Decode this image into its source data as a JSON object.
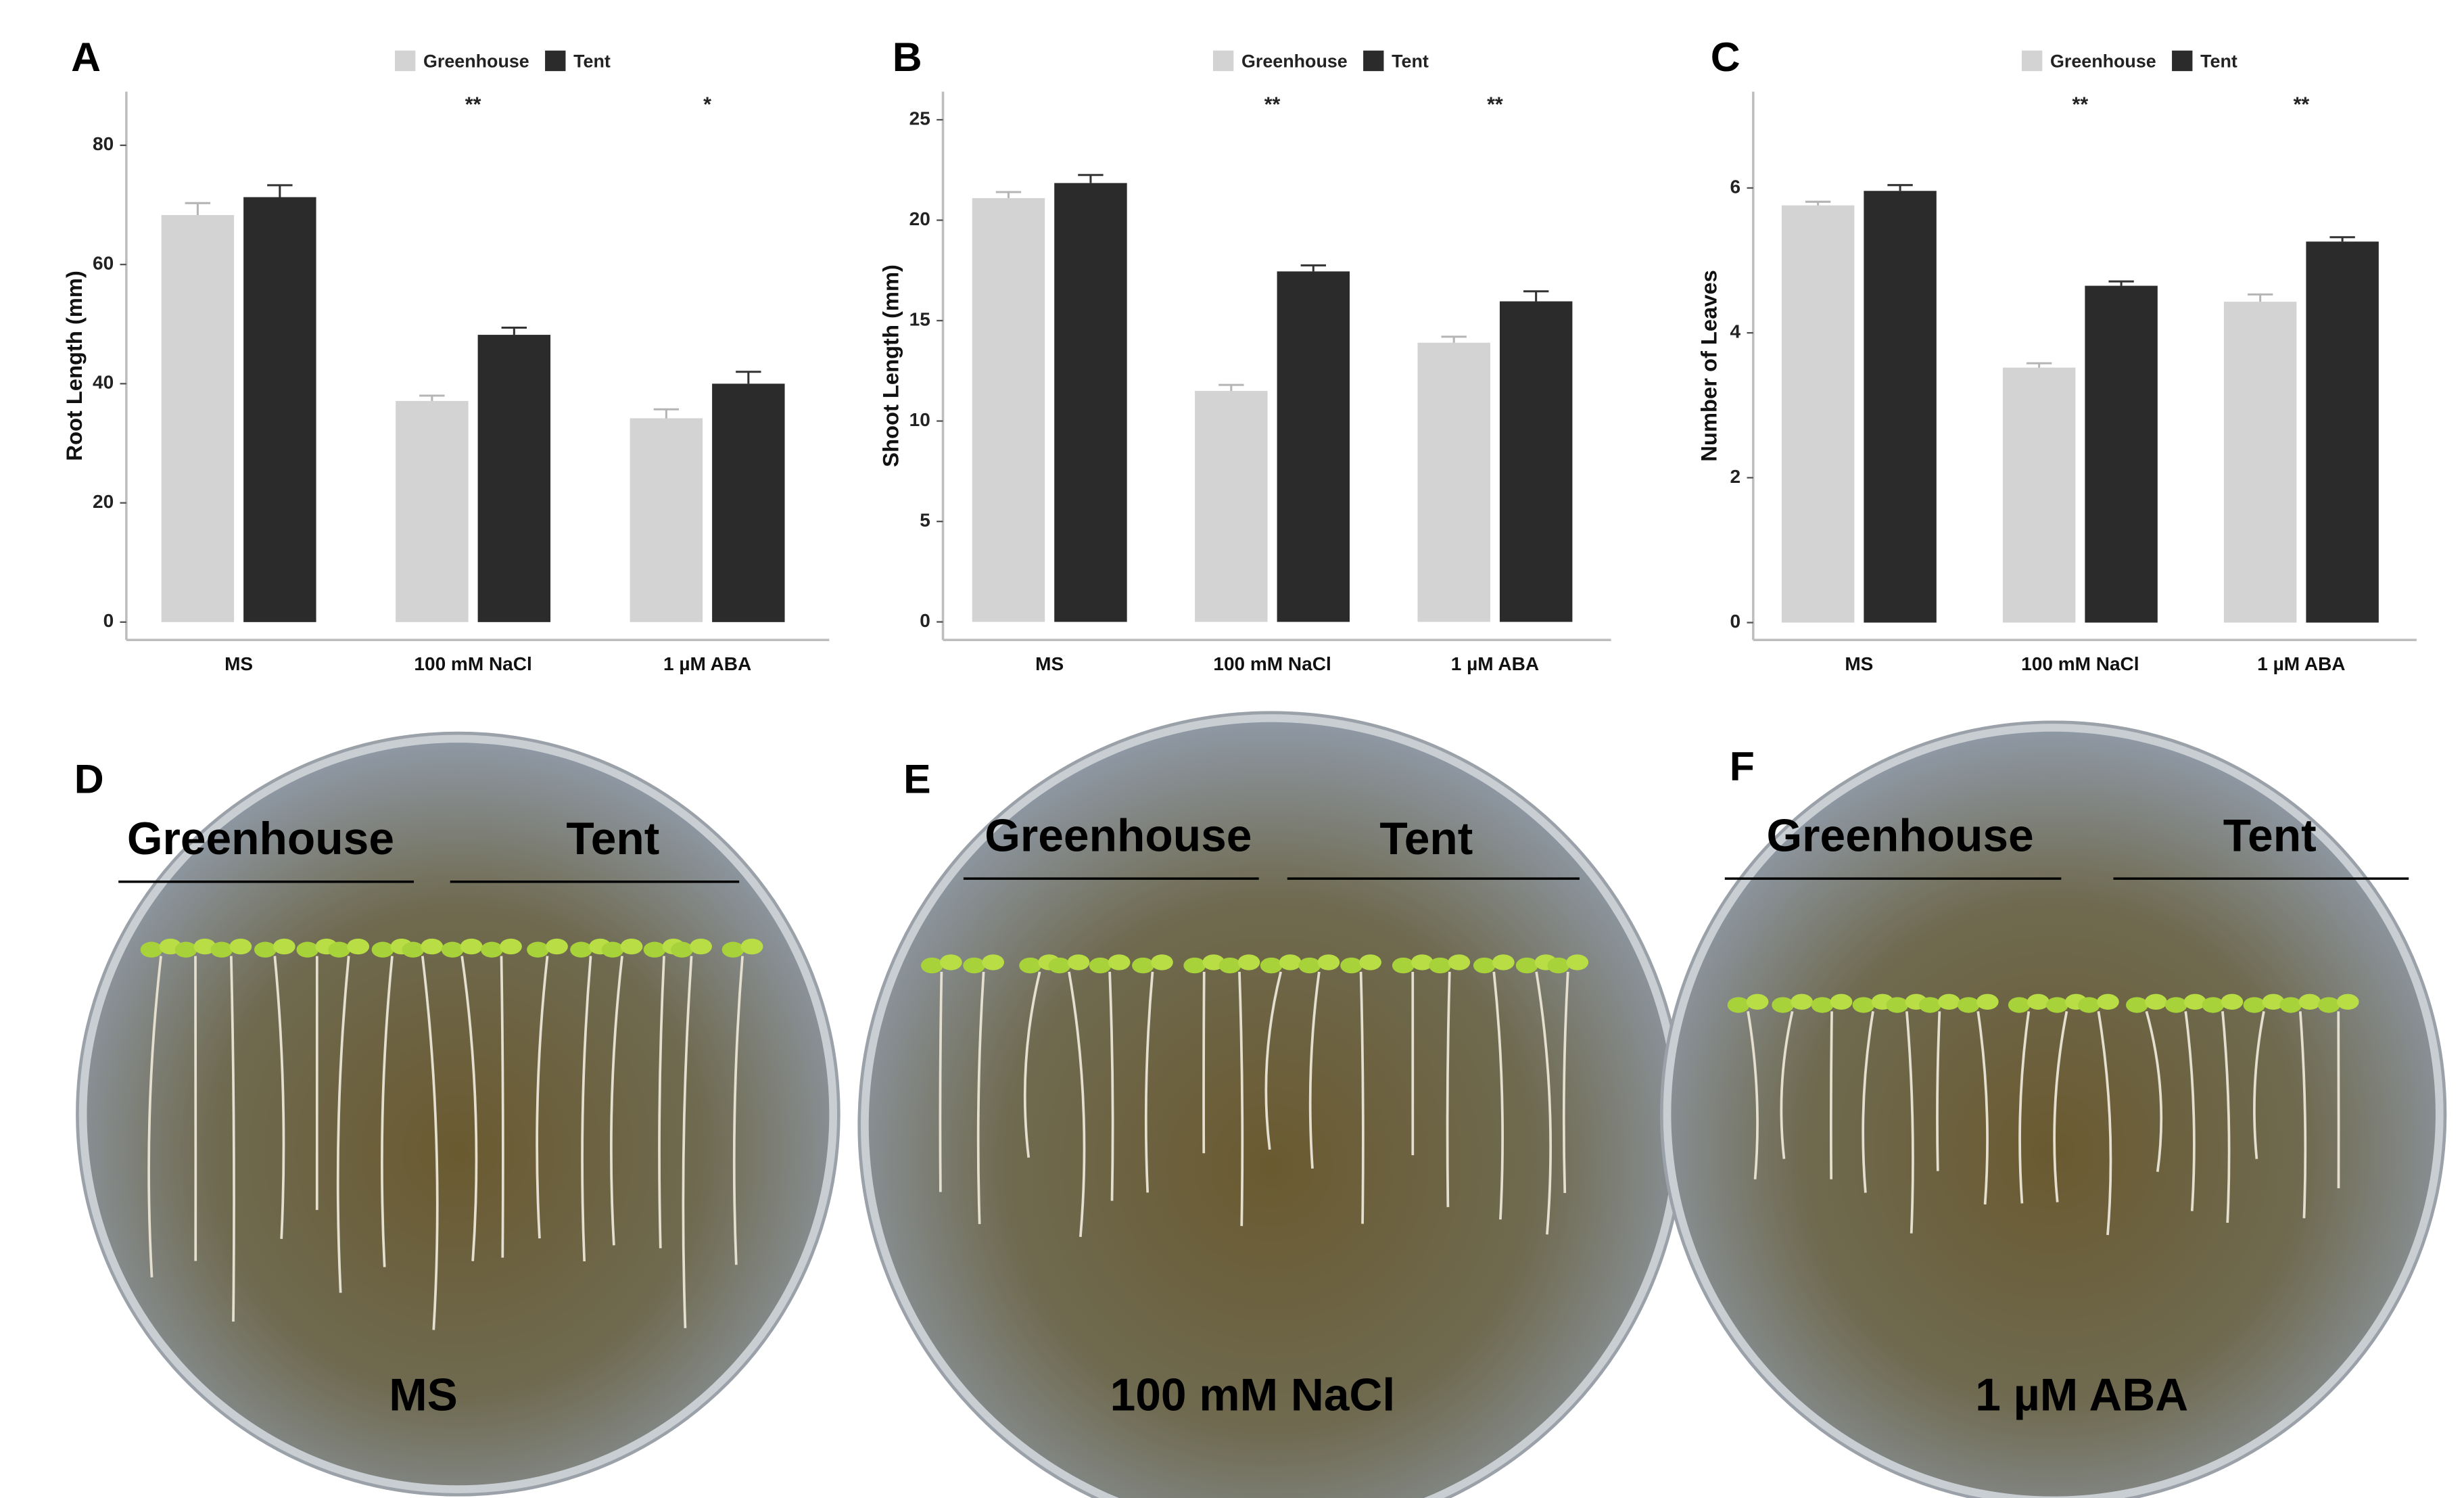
{
  "chart_data": [
    {
      "type": "bar",
      "panel": "A",
      "ylabel": "Root Length (mm)",
      "categories": [
        "MS",
        "100 mM NaCl",
        "1 µM ABA"
      ],
      "series": [
        {
          "name": "Greenhouse",
          "color": "#d3d3d3",
          "values": [
            68.3,
            37.1,
            34.2
          ],
          "errors": [
            2.0,
            0.9,
            1.5
          ]
        },
        {
          "name": "Tent",
          "color": "#2b2b2b",
          "values": [
            71.3,
            48.2,
            40.0
          ],
          "errors": [
            2.0,
            1.2,
            2.0
          ]
        }
      ],
      "annotations": [
        null,
        "**",
        "*"
      ],
      "ylim": [
        -3,
        89
      ],
      "yticks": [
        0,
        20,
        40,
        60,
        80
      ]
    },
    {
      "type": "bar",
      "panel": "B",
      "ylabel": "Shoot Length (mm)",
      "categories": [
        "MS",
        "100 mM NaCl",
        "1 µM ABA"
      ],
      "series": [
        {
          "name": "Greenhouse",
          "color": "#d3d3d3",
          "values": [
            21.1,
            11.5,
            13.9
          ],
          "errors": [
            0.3,
            0.3,
            0.3
          ]
        },
        {
          "name": "Tent",
          "color": "#2b2b2b",
          "values": [
            21.85,
            17.45,
            15.96
          ],
          "errors": [
            0.4,
            0.3,
            0.5
          ]
        }
      ],
      "annotations": [
        null,
        "**",
        "**"
      ],
      "ylim": [
        -0.9,
        26.4
      ],
      "yticks": [
        0,
        5,
        10,
        15,
        20,
        25
      ]
    },
    {
      "type": "bar",
      "panel": "C",
      "ylabel": "Number of Leaves",
      "categories": [
        "MS",
        "100 mM NaCl",
        "1 µM ABA"
      ],
      "series": [
        {
          "name": "Greenhouse",
          "color": "#d3d3d3",
          "values": [
            5.76,
            3.52,
            4.43
          ],
          "errors": [
            0.05,
            0.06,
            0.1
          ]
        },
        {
          "name": "Tent",
          "color": "#2b2b2b",
          "values": [
            5.96,
            4.65,
            5.26
          ],
          "errors": [
            0.08,
            0.06,
            0.06
          ]
        }
      ],
      "annotations": [
        null,
        "**",
        "**"
      ],
      "ylim": [
        -0.24,
        7.33
      ],
      "yticks": [
        0,
        2,
        4,
        6
      ]
    }
  ],
  "photos": [
    {
      "panel": "D",
      "left": "Greenhouse",
      "right": "Tent",
      "treatment": "MS"
    },
    {
      "panel": "E",
      "left": "Greenhouse",
      "right": "Tent",
      "treatment": "100 mM NaCl"
    },
    {
      "panel": "F",
      "left": "Greenhouse",
      "right": "Tent",
      "treatment": "1 µM ABA"
    }
  ]
}
